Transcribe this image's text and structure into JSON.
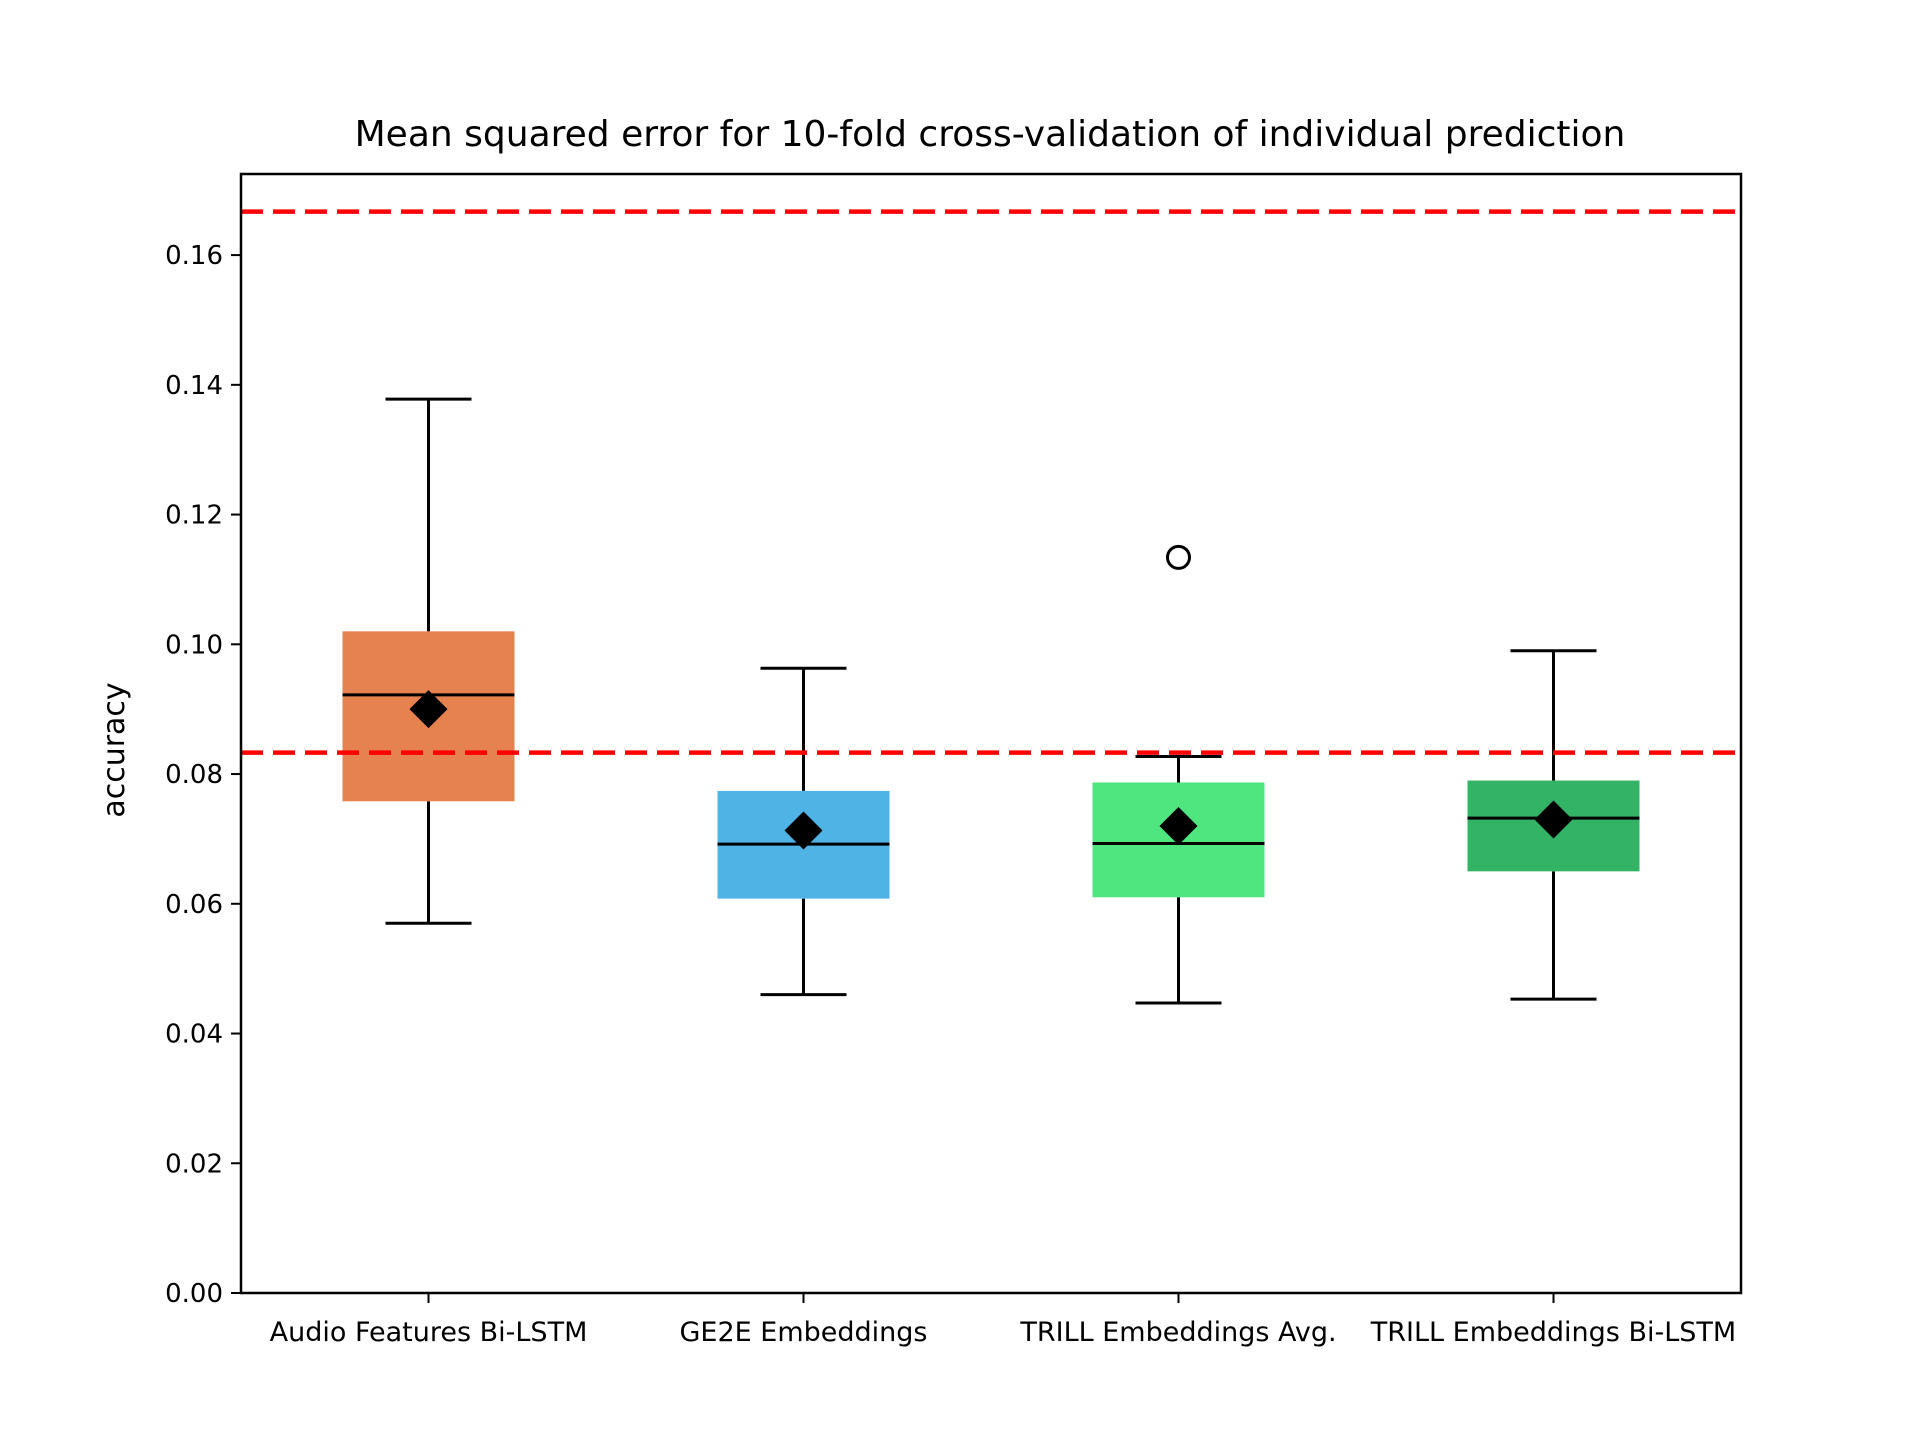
{
  "chart_data": {
    "type": "box",
    "title": "Mean squared error for 10-fold cross-validation of individual prediction",
    "xlabel": "",
    "ylabel": "accuracy",
    "ylim": [
      0.0,
      0.1725
    ],
    "yticks": [
      0.0,
      0.02,
      0.04,
      0.06,
      0.08,
      0.1,
      0.12,
      0.14,
      0.16
    ],
    "ytick_labels": [
      "0.00",
      "0.02",
      "0.04",
      "0.06",
      "0.08",
      "0.10",
      "0.12",
      "0.14",
      "0.16"
    ],
    "grid": false,
    "reference_lines": [
      {
        "y": 0.1667,
        "color": "#ff0000",
        "style": "dashed"
      },
      {
        "y": 0.0833,
        "color": "#ff0000",
        "style": "dashed"
      }
    ],
    "boxes": [
      {
        "label": "Audio Features Bi-LSTM",
        "color": "#e6824f",
        "q1": 0.0758,
        "median": 0.0922,
        "q3": 0.102,
        "whisker_low": 0.057,
        "whisker_high": 0.1378,
        "mean": 0.09,
        "outliers": []
      },
      {
        "label": "GE2E Embeddings",
        "color": "#4fb3e6",
        "q1": 0.0608,
        "median": 0.0692,
        "q3": 0.0774,
        "whisker_low": 0.046,
        "whisker_high": 0.0963,
        "mean": 0.0713,
        "outliers": []
      },
      {
        "label": "TRILL Embeddings Avg.",
        "color": "#4fe680",
        "q1": 0.061,
        "median": 0.0693,
        "q3": 0.0787,
        "whisker_low": 0.0447,
        "whisker_high": 0.0827,
        "mean": 0.072,
        "outliers": [
          0.1134
        ]
      },
      {
        "label": "TRILL Embeddings Bi-LSTM",
        "color": "#33b366",
        "q1": 0.065,
        "median": 0.0732,
        "q3": 0.079,
        "whisker_low": 0.0453,
        "whisker_high": 0.099,
        "mean": 0.073,
        "outliers": []
      }
    ]
  }
}
